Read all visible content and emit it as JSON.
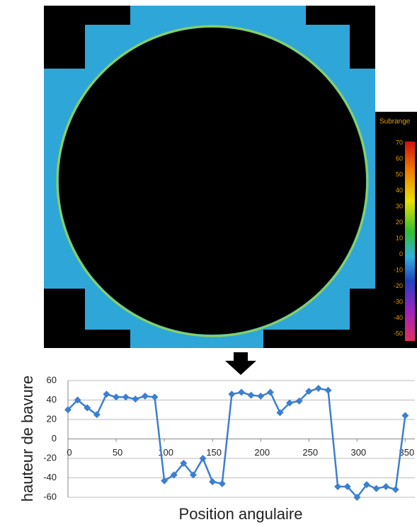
{
  "chart_data": {
    "type": "line",
    "x_label": "Position angulaire",
    "y_label": "hauteur de bavure",
    "x": [
      0,
      10,
      20,
      30,
      40,
      50,
      60,
      70,
      80,
      90,
      100,
      110,
      120,
      130,
      140,
      150,
      160,
      170,
      180,
      190,
      200,
      210,
      220,
      230,
      240,
      250,
      260,
      270,
      280,
      290,
      300,
      310,
      320,
      330,
      340,
      350
    ],
    "series": [
      {
        "color": "#3b7fd0",
        "values": [
          30,
          40,
          32,
          25,
          46,
          43,
          43,
          41,
          44,
          43,
          -43,
          -37,
          -25,
          -37,
          -20,
          -44,
          -46,
          46,
          48,
          45,
          44,
          48,
          27,
          37,
          39,
          49,
          52,
          50,
          -49,
          -49,
          -60,
          -47,
          -51,
          -49,
          -52,
          24
        ]
      }
    ],
    "xlim": [
      0,
      360
    ],
    "xticks": [
      0,
      50,
      100,
      150,
      200,
      250,
      300,
      350
    ],
    "ylim": [
      -60,
      60
    ],
    "yticks": [
      -60,
      -40,
      -20,
      0,
      20,
      40,
      60
    ],
    "grid": true,
    "colorbar": {
      "label": "Subrange",
      "ticks": [
        70,
        60,
        50,
        40,
        30,
        20,
        10,
        0,
        -10,
        -20,
        -30,
        -40,
        -50
      ]
    }
  }
}
